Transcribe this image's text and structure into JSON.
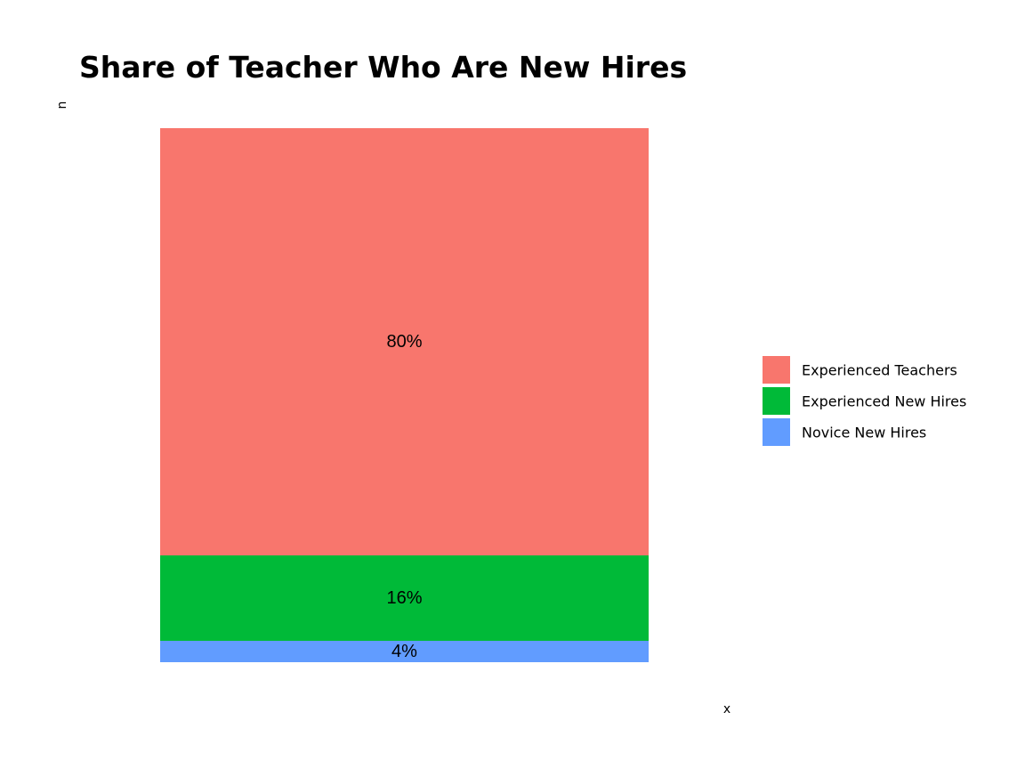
{
  "chart_data": {
    "type": "bar",
    "stacked": true,
    "title": "Share of Teacher Who Are New Hires",
    "xlabel": "x",
    "ylabel": "n",
    "ylim": [
      0,
      100
    ],
    "grid": false,
    "legend_position": "right",
    "series": [
      {
        "name": "Experienced Teachers",
        "value": 80,
        "label": "80%",
        "color": "#F8766D"
      },
      {
        "name": "Experienced New Hires",
        "value": 16,
        "label": "16%",
        "color": "#00BA38"
      },
      {
        "name": "Novice New Hires",
        "value": 4,
        "label": "4%",
        "color": "#619CFF"
      }
    ]
  }
}
